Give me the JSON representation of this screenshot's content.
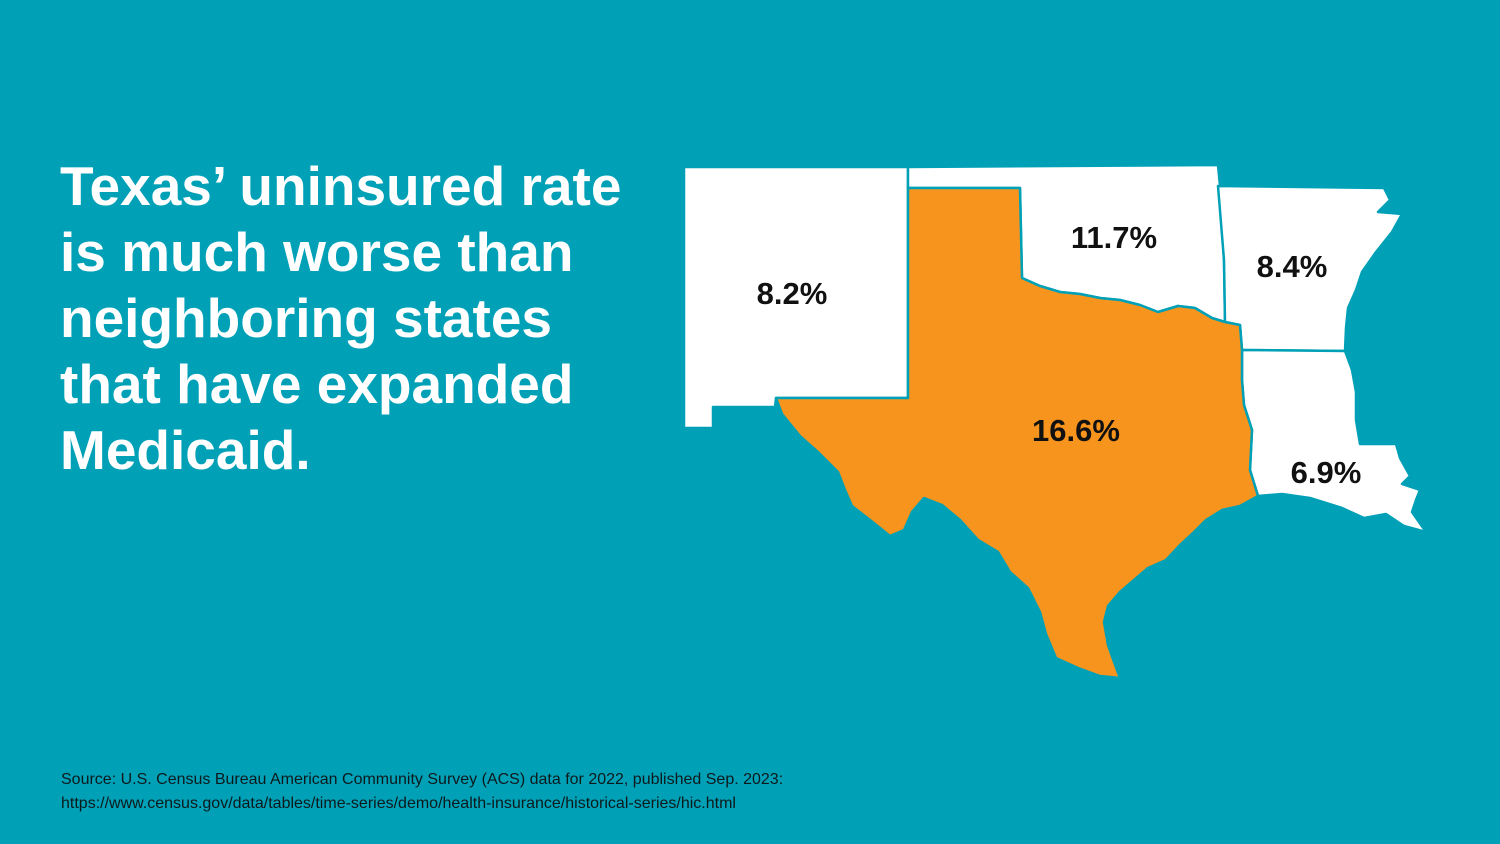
{
  "headline": {
    "lines": [
      "Texas’ uninsured rate",
      "is much worse than",
      "neighboring states",
      "that have expanded",
      "Medicaid."
    ]
  },
  "map": {
    "colors": {
      "background": "#00A0B7",
      "texas": "#F7941D",
      "neighbors": "#FFFFFF",
      "borders": "#00A0B7"
    },
    "states": {
      "new_mexico": {
        "rate": "8.2%"
      },
      "oklahoma": {
        "rate": "11.7%"
      },
      "arkansas": {
        "rate": "8.4%"
      },
      "louisiana": {
        "rate": "6.9%"
      },
      "texas": {
        "rate": "16.6%"
      }
    }
  },
  "source": {
    "line1": "Source: U.S. Census Bureau American Community Survey (ACS) data for 2022, published Sep. 2023:",
    "line2": "https://www.census.gov/data/tables/time-series/demo/health-insurance/historical-series/hic.html"
  }
}
